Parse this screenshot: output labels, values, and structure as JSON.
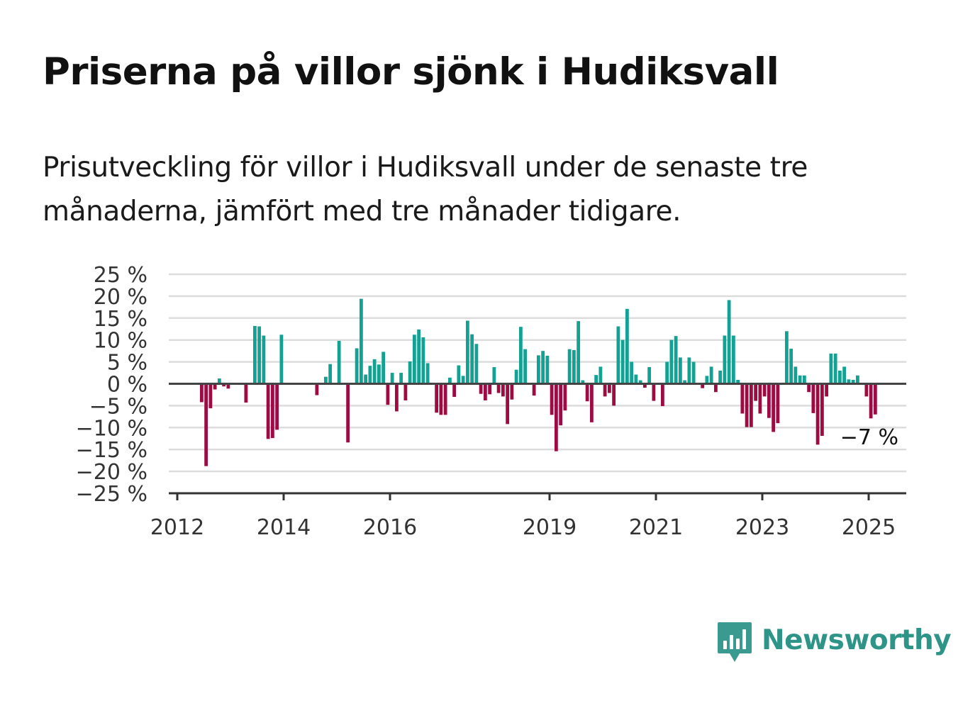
{
  "title": "Priserna på villor sjönk i Hudiksvall",
  "subtitle": "Prisutveckling för villor i Hudiksvall under de senaste tre månaderna, jämfört med tre månader tidigare.",
  "brand": {
    "name": "Newsworthy",
    "icon": "bar-chart-speech-bubble-icon"
  },
  "colors": {
    "positive": "#12a192",
    "negative": "#9e0b43",
    "brand": "#2f9488",
    "grid": "#dcdcdc",
    "axis": "#333333"
  },
  "chart_data": {
    "type": "bar",
    "title": "Priserna på villor sjönk i Hudiksvall",
    "xlabel": "",
    "ylabel": "",
    "ylim": [
      -25,
      25
    ],
    "y_ticks": [
      25,
      20,
      15,
      10,
      5,
      0,
      -5,
      -10,
      -15,
      -20,
      -25
    ],
    "y_tick_labels": [
      "25 %",
      "20 %",
      "15 %",
      "10 %",
      "5 %",
      "0 %",
      "−5 %",
      "−10 %",
      "−15 %",
      "−20 %",
      "−25 %"
    ],
    "x_ticks": [
      2012,
      2014,
      2016,
      2019,
      2021,
      2023,
      2025
    ],
    "x_tick_labels": [
      "2012",
      "2014",
      "2016",
      "2019",
      "2021",
      "2023",
      "2025"
    ],
    "grid": true,
    "last_value_label": "−7 %",
    "x": [
      "2012-01",
      "2012-02",
      "2012-03",
      "2012-04",
      "2012-05",
      "2012-06",
      "2012-07",
      "2012-08",
      "2012-09",
      "2012-10",
      "2012-11",
      "2012-12",
      "2013-01",
      "2013-02",
      "2013-03",
      "2013-04",
      "2013-05",
      "2013-06",
      "2013-07",
      "2013-08",
      "2013-09",
      "2013-10",
      "2013-11",
      "2013-12",
      "2014-01",
      "2014-02",
      "2014-03",
      "2014-04",
      "2014-05",
      "2014-06",
      "2014-07",
      "2014-08",
      "2014-09",
      "2014-10",
      "2014-11",
      "2014-12",
      "2015-01",
      "2015-02",
      "2015-03",
      "2015-04",
      "2015-05",
      "2015-06",
      "2015-07",
      "2015-08",
      "2015-09",
      "2015-10",
      "2015-11",
      "2015-12",
      "2016-01",
      "2016-02",
      "2016-03",
      "2016-04",
      "2016-05",
      "2016-06",
      "2016-07",
      "2016-08",
      "2016-09",
      "2016-10",
      "2016-11",
      "2016-12",
      "2017-01",
      "2017-02",
      "2017-03",
      "2017-04",
      "2017-05",
      "2017-06",
      "2017-07",
      "2017-08",
      "2017-09",
      "2017-10",
      "2017-11",
      "2017-12",
      "2018-01",
      "2018-02",
      "2018-03",
      "2018-04",
      "2018-05",
      "2018-06",
      "2018-07",
      "2018-08",
      "2018-09",
      "2018-10",
      "2018-11",
      "2018-12",
      "2019-01",
      "2019-02",
      "2019-03",
      "2019-04",
      "2019-05",
      "2019-06",
      "2019-07",
      "2019-08",
      "2019-09",
      "2019-10",
      "2019-11",
      "2019-12",
      "2020-01",
      "2020-02",
      "2020-03",
      "2020-04",
      "2020-05",
      "2020-06",
      "2020-07",
      "2020-08",
      "2020-09",
      "2020-10",
      "2020-11",
      "2020-12",
      "2021-01",
      "2021-02",
      "2021-03",
      "2021-04",
      "2021-05",
      "2021-06",
      "2021-07",
      "2021-08",
      "2021-09",
      "2021-10",
      "2021-11",
      "2021-12",
      "2022-01",
      "2022-02",
      "2022-03",
      "2022-04",
      "2022-05",
      "2022-06",
      "2022-07",
      "2022-08",
      "2022-09",
      "2022-10",
      "2022-11",
      "2022-12",
      "2023-01",
      "2023-02",
      "2023-03",
      "2023-04",
      "2023-05",
      "2023-06",
      "2023-07",
      "2023-08",
      "2023-09",
      "2023-10",
      "2023-11",
      "2023-12",
      "2024-01",
      "2024-02",
      "2024-03",
      "2024-04",
      "2024-05",
      "2024-06",
      "2024-07",
      "2024-08",
      "2024-09",
      "2024-10",
      "2024-11",
      "2024-12",
      "2025-01",
      "2025-02"
    ],
    "values": [
      null,
      null,
      null,
      null,
      null,
      -4.2,
      -18.8,
      -5.6,
      -1.3,
      1.2,
      -0.6,
      -1.1,
      null,
      null,
      null,
      -4.3,
      null,
      13.2,
      13.1,
      11.0,
      -12.6,
      -12.4,
      -10.5,
      11.2,
      null,
      null,
      null,
      null,
      null,
      null,
      null,
      -2.6,
      null,
      1.6,
      4.5,
      null,
      9.8,
      null,
      -13.4,
      null,
      8.1,
      19.4,
      2.1,
      4.1,
      5.6,
      4.4,
      7.3,
      -4.8,
      2.5,
      -6.3,
      2.5,
      -3.8,
      5.1,
      11.2,
      12.4,
      10.6,
      4.7,
      null,
      -6.6,
      -7.1,
      -7.1,
      1.4,
      -3.0,
      4.2,
      1.8,
      14.4,
      11.3,
      9.1,
      -2.3,
      -3.8,
      -2.4,
      3.8,
      -2.1,
      -2.9,
      -9.2,
      -3.6,
      3.2,
      13.0,
      7.9,
      null,
      -2.7,
      6.5,
      7.5,
      6.4,
      -7.1,
      -15.4,
      -9.5,
      -6.1,
      7.9,
      7.7,
      14.3,
      0.8,
      -4.0,
      -8.8,
      2.0,
      3.9,
      -2.9,
      -2.1,
      -5.0,
      13.1,
      10.0,
      17.1,
      5.0,
      2.1,
      0.8,
      -0.9,
      3.8,
      -3.9,
      null,
      -5.1,
      5.0,
      10.0,
      10.9,
      6.0,
      0.8,
      6.0,
      5.0,
      null,
      -1.0,
      1.8,
      3.9,
      -1.9,
      3.0,
      11.0,
      19.1,
      11.0,
      0.9,
      -6.8,
      -9.9,
      -9.9,
      -3.9,
      -6.8,
      -2.9,
      -7.8,
      -11.0,
      -9.0,
      null,
      12.0,
      8.0,
      3.9,
      1.9,
      1.9,
      -1.9,
      -6.7,
      -13.9,
      -11.9,
      -2.9,
      6.9,
      6.9,
      3.0,
      3.9,
      1.0,
      0.9,
      1.9,
      null,
      -2.9,
      -7.9,
      -7.0
    ]
  }
}
